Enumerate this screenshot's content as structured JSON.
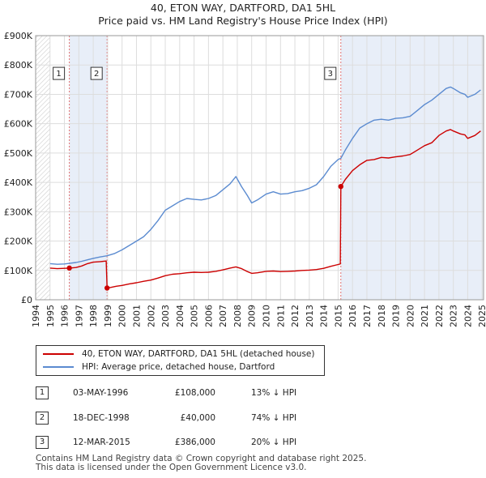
{
  "header": {
    "address": "40, ETON WAY, DARTFORD, DA1 5HL",
    "subtitle": "Price paid vs. HM Land Registry's House Price Index (HPI)"
  },
  "chart_data": {
    "type": "line",
    "title": "40, ETON WAY, DARTFORD, DA1 5HL",
    "subtitle": "Price paid vs. HM Land Registry's House Price Index (HPI)",
    "xlabel": "",
    "ylabel": "",
    "xlim": [
      1994,
      2025.1
    ],
    "ylim": [
      0,
      900000
    ],
    "x_ticks": [
      1994,
      1995,
      1996,
      1997,
      1998,
      1999,
      2000,
      2001,
      2002,
      2003,
      2004,
      2005,
      2006,
      2007,
      2008,
      2009,
      2010,
      2011,
      2012,
      2013,
      2014,
      2015,
      2016,
      2017,
      2018,
      2019,
      2020,
      2021,
      2022,
      2023,
      2024,
      2025
    ],
    "y_ticks": [
      {
        "value": 0,
        "label": "£0"
      },
      {
        "value": 100000,
        "label": "£100K"
      },
      {
        "value": 200000,
        "label": "£200K"
      },
      {
        "value": 300000,
        "label": "£300K"
      },
      {
        "value": 400000,
        "label": "£400K"
      },
      {
        "value": 500000,
        "label": "£500K"
      },
      {
        "value": 600000,
        "label": "£600K"
      },
      {
        "value": 700000,
        "label": "£700K"
      },
      {
        "value": 800000,
        "label": "£800K"
      },
      {
        "value": 900000,
        "label": "£900K"
      }
    ],
    "grid": true,
    "hatched_ranges": [
      [
        1994,
        1995
      ],
      [
        2025,
        2025.1
      ]
    ],
    "shaded_ranges": [
      [
        1996.34,
        1998.96
      ],
      [
        2015.19,
        2025.1
      ]
    ],
    "series": [
      {
        "name": "40, ETON WAY, DARTFORD, DA1 5HL (detached house)",
        "color": "#cc0000",
        "points": [
          [
            1995.0,
            108000
          ],
          [
            1995.5,
            106000
          ],
          [
            1996.0,
            107000
          ],
          [
            1996.34,
            108000
          ],
          [
            1996.8,
            110000
          ],
          [
            1997.2,
            115000
          ],
          [
            1997.6,
            123000
          ],
          [
            1998.0,
            128000
          ],
          [
            1998.5,
            130000
          ],
          [
            1998.9,
            132000
          ],
          [
            1998.96,
            40000
          ],
          [
            1999.2,
            42000
          ],
          [
            1999.6,
            46000
          ],
          [
            2000.0,
            49000
          ],
          [
            2000.5,
            54000
          ],
          [
            2001.0,
            58000
          ],
          [
            2001.5,
            63000
          ],
          [
            2002.0,
            67000
          ],
          [
            2002.5,
            74000
          ],
          [
            2003.0,
            82000
          ],
          [
            2003.5,
            87000
          ],
          [
            2004.0,
            89000
          ],
          [
            2004.5,
            92000
          ],
          [
            2005.0,
            94000
          ],
          [
            2005.5,
            93000
          ],
          [
            2006.0,
            94000
          ],
          [
            2006.5,
            97000
          ],
          [
            2007.0,
            102000
          ],
          [
            2007.5,
            108000
          ],
          [
            2007.9,
            112000
          ],
          [
            2008.3,
            106000
          ],
          [
            2008.7,
            96000
          ],
          [
            2009.0,
            90000
          ],
          [
            2009.4,
            92000
          ],
          [
            2010.0,
            97000
          ],
          [
            2010.5,
            98000
          ],
          [
            2011.0,
            96000
          ],
          [
            2011.5,
            97000
          ],
          [
            2012.0,
            98000
          ],
          [
            2012.5,
            100000
          ],
          [
            2013.0,
            101000
          ],
          [
            2013.5,
            103000
          ],
          [
            2014.0,
            107000
          ],
          [
            2014.5,
            114000
          ],
          [
            2015.0,
            120000
          ],
          [
            2015.15,
            122000
          ],
          [
            2015.19,
            386000
          ],
          [
            2015.5,
            410000
          ],
          [
            2016.0,
            440000
          ],
          [
            2016.5,
            460000
          ],
          [
            2017.0,
            475000
          ],
          [
            2017.5,
            478000
          ],
          [
            2018.0,
            485000
          ],
          [
            2018.5,
            483000
          ],
          [
            2019.0,
            487000
          ],
          [
            2019.5,
            490000
          ],
          [
            2020.0,
            495000
          ],
          [
            2020.5,
            510000
          ],
          [
            2021.0,
            525000
          ],
          [
            2021.5,
            535000
          ],
          [
            2022.0,
            560000
          ],
          [
            2022.5,
            575000
          ],
          [
            2022.8,
            580000
          ],
          [
            2023.0,
            575000
          ],
          [
            2023.5,
            565000
          ],
          [
            2023.8,
            562000
          ],
          [
            2024.0,
            550000
          ],
          [
            2024.5,
            560000
          ],
          [
            2024.9,
            575000
          ]
        ]
      },
      {
        "name": "HPI: Average price, detached house, Dartford",
        "color": "#5b8bd0",
        "points": [
          [
            1995.0,
            123000
          ],
          [
            1995.5,
            121000
          ],
          [
            1996.0,
            122000
          ],
          [
            1996.34,
            124000
          ],
          [
            1996.8,
            127000
          ],
          [
            1997.2,
            131000
          ],
          [
            1997.6,
            136000
          ],
          [
            1998.0,
            141000
          ],
          [
            1998.5,
            146000
          ],
          [
            1998.96,
            150000
          ],
          [
            1999.5,
            158000
          ],
          [
            2000.0,
            170000
          ],
          [
            2000.5,
            185000
          ],
          [
            2001.0,
            200000
          ],
          [
            2001.5,
            215000
          ],
          [
            2002.0,
            240000
          ],
          [
            2002.5,
            270000
          ],
          [
            2003.0,
            305000
          ],
          [
            2003.5,
            320000
          ],
          [
            2004.0,
            335000
          ],
          [
            2004.5,
            345000
          ],
          [
            2005.0,
            342000
          ],
          [
            2005.5,
            340000
          ],
          [
            2006.0,
            345000
          ],
          [
            2006.5,
            355000
          ],
          [
            2007.0,
            375000
          ],
          [
            2007.5,
            395000
          ],
          [
            2007.9,
            420000
          ],
          [
            2008.3,
            385000
          ],
          [
            2008.7,
            355000
          ],
          [
            2009.0,
            330000
          ],
          [
            2009.4,
            340000
          ],
          [
            2010.0,
            360000
          ],
          [
            2010.5,
            368000
          ],
          [
            2011.0,
            360000
          ],
          [
            2011.5,
            362000
          ],
          [
            2012.0,
            368000
          ],
          [
            2012.5,
            372000
          ],
          [
            2013.0,
            380000
          ],
          [
            2013.5,
            392000
          ],
          [
            2014.0,
            420000
          ],
          [
            2014.5,
            455000
          ],
          [
            2015.0,
            478000
          ],
          [
            2015.19,
            482000
          ],
          [
            2015.5,
            510000
          ],
          [
            2016.0,
            550000
          ],
          [
            2016.5,
            585000
          ],
          [
            2017.0,
            600000
          ],
          [
            2017.5,
            612000
          ],
          [
            2018.0,
            615000
          ],
          [
            2018.5,
            612000
          ],
          [
            2019.0,
            618000
          ],
          [
            2019.5,
            620000
          ],
          [
            2020.0,
            625000
          ],
          [
            2020.5,
            645000
          ],
          [
            2021.0,
            665000
          ],
          [
            2021.5,
            680000
          ],
          [
            2022.0,
            700000
          ],
          [
            2022.5,
            720000
          ],
          [
            2022.8,
            725000
          ],
          [
            2023.0,
            720000
          ],
          [
            2023.5,
            705000
          ],
          [
            2023.8,
            700000
          ],
          [
            2024.0,
            690000
          ],
          [
            2024.5,
            700000
          ],
          [
            2024.9,
            715000
          ]
        ]
      }
    ],
    "markers": [
      {
        "label": "1",
        "x": 1996.34,
        "y": 108000,
        "label_y": 770000
      },
      {
        "label": "2",
        "x": 1998.96,
        "y": 40000,
        "label_y": 770000
      },
      {
        "label": "3",
        "x": 2015.19,
        "y": 386000,
        "label_y": 770000
      }
    ]
  },
  "legend": {
    "items": [
      {
        "label": "40, ETON WAY, DARTFORD, DA1 5HL (detached house)",
        "color": "#cc0000"
      },
      {
        "label": "HPI: Average price, detached house, Dartford",
        "color": "#5b8bd0"
      }
    ]
  },
  "transactions": [
    {
      "num": "1",
      "date": "03-MAY-1996",
      "price": "£108,000",
      "hpi": "13% ↓ HPI"
    },
    {
      "num": "2",
      "date": "18-DEC-1998",
      "price": "£40,000",
      "hpi": "74% ↓ HPI"
    },
    {
      "num": "3",
      "date": "12-MAR-2015",
      "price": "£386,000",
      "hpi": "20% ↓ HPI"
    }
  ],
  "footer": {
    "line1": "Contains HM Land Registry data © Crown copyright and database right 2025.",
    "line2": "This data is licensed under the Open Government Licence v3.0."
  }
}
